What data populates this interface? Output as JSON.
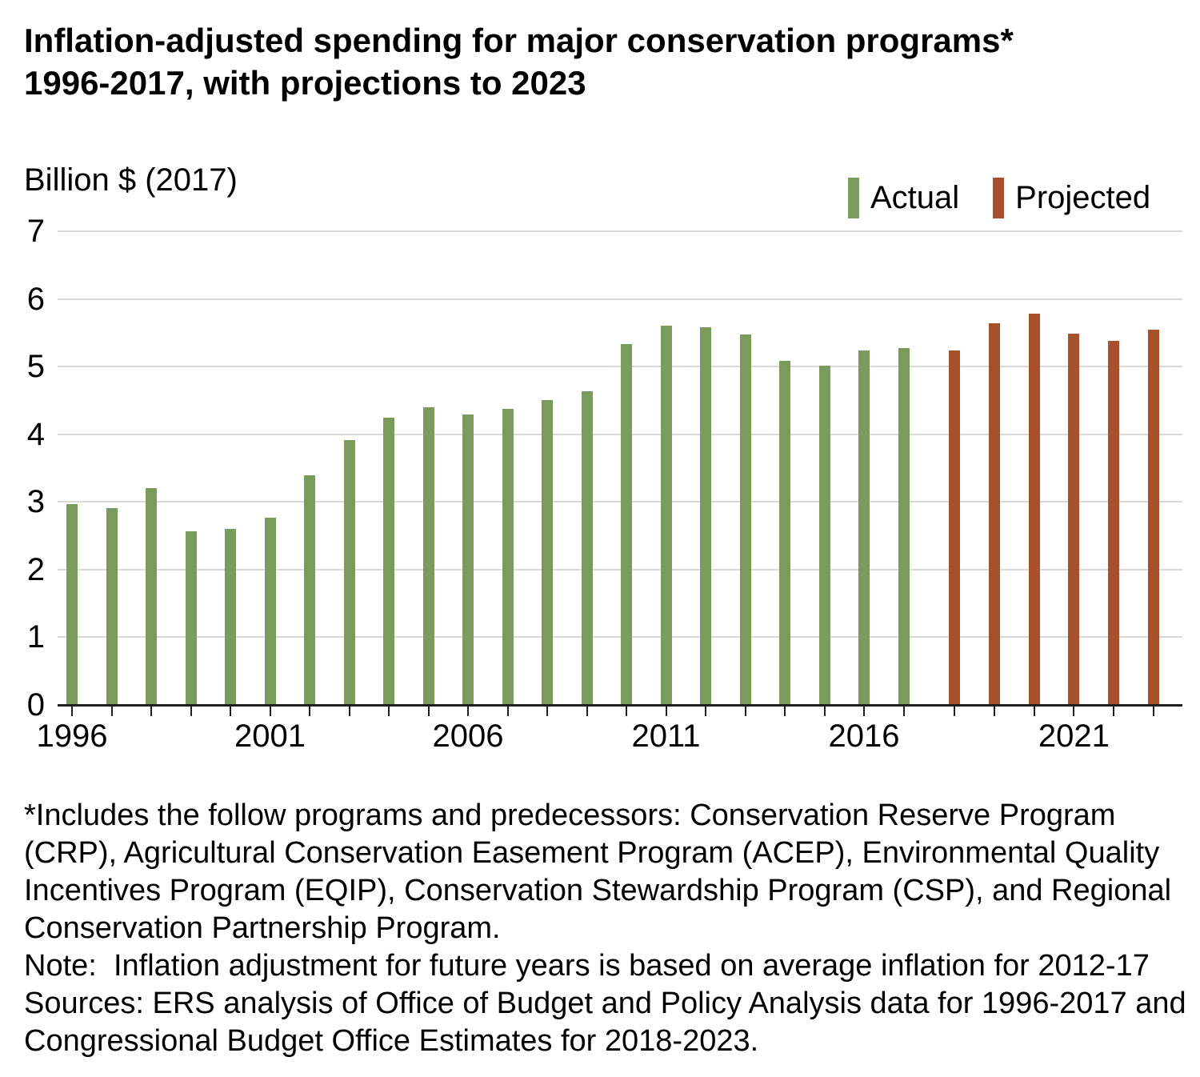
{
  "title": {
    "line1": "Inflation-adjusted spending for major conservation programs*",
    "line2": "1996-2017, with projections to 2023"
  },
  "y_axis_title": "Billion $ (2017)",
  "legend": {
    "actual_label": "Actual",
    "projected_label": "Projected"
  },
  "chart_data": {
    "type": "bar",
    "title": "Inflation-adjusted spending for major conservation programs* 1996-2017, with projections to 2023",
    "ylabel": "Billion $ (2017)",
    "ylim": [
      0,
      7
    ],
    "yticks": [
      0,
      1,
      2,
      3,
      4,
      5,
      6,
      7
    ],
    "x_labeled_years": [
      1996,
      2001,
      2006,
      2011,
      2016,
      2021
    ],
    "grid": "horizontal",
    "legend_position": "top-right",
    "series": [
      {
        "name": "Actual",
        "color": "#7B9B5C",
        "years": [
          1996,
          1997,
          1998,
          1999,
          2000,
          2001,
          2002,
          2003,
          2004,
          2005,
          2006,
          2007,
          2008,
          2009,
          2010,
          2011,
          2012,
          2013,
          2014,
          2015,
          2016,
          2017
        ],
        "values": [
          2.97,
          2.91,
          3.2,
          2.57,
          2.6,
          2.77,
          3.39,
          3.91,
          4.24,
          4.4,
          4.29,
          4.38,
          4.5,
          4.63,
          5.33,
          5.6,
          5.58,
          5.47,
          5.09,
          5.01,
          5.24,
          5.27
        ]
      },
      {
        "name": "Projected",
        "color": "#A7512C",
        "years": [
          2018,
          2019,
          2020,
          2021,
          2022,
          2023
        ],
        "values": [
          5.24,
          5.64,
          5.78,
          5.49,
          5.38,
          5.54
        ]
      }
    ]
  },
  "footnote": {
    "p1": "*Includes the follow programs and predecessors: Conservation Reserve Program (CRP), Agricultural Conservation Easement Program (ACEP), Environmental Quality Incentives Program (EQIP), Conservation Stewardship Program (CSP), and Regional Conservation Partnership Program.",
    "p2": "Note:  Inflation adjustment for future years is based on average inflation for 2012-17",
    "p3": "Sources: ERS analysis of Office of Budget and Policy Analysis data for 1996-2017 and Congressional Budget Office Estimates for 2018-2023."
  }
}
